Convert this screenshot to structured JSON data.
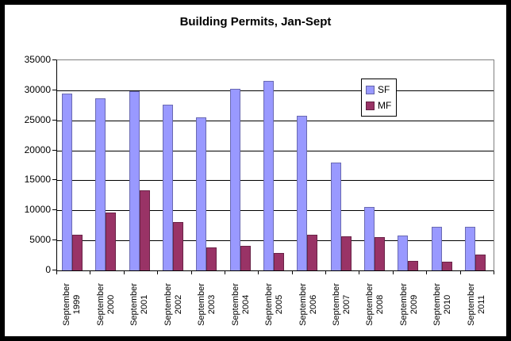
{
  "window": {
    "background": "#ffffff",
    "frame_border_color": "#000000"
  },
  "chart_data": {
    "type": "bar",
    "title": "Building Permits, Jan-Sept",
    "categories": [
      "September 1999",
      "September 2000",
      "September 2001",
      "September 2002",
      "September 2003",
      "September 2004",
      "September 2005",
      "September 2006",
      "September 2007",
      "September 2008",
      "September 2009",
      "September 2010",
      "September 2011"
    ],
    "series": [
      {
        "name": "SF",
        "color": "#9999ff",
        "values": [
          29500,
          28600,
          29900,
          27600,
          25500,
          30200,
          31600,
          25800,
          18000,
          10600,
          5800,
          7200,
          7200
        ]
      },
      {
        "name": "MF",
        "color": "#993366",
        "values": [
          6000,
          9600,
          13300,
          8100,
          3800,
          4100,
          2900,
          6000,
          5700,
          5600,
          1600,
          1400,
          2700
        ]
      }
    ],
    "xlabel": "",
    "ylabel": "",
    "ylim": [
      0,
      35000
    ],
    "y_ticks": [
      0,
      5000,
      10000,
      15000,
      20000,
      25000,
      30000,
      35000
    ],
    "grid": "horizontal-major",
    "gridline_color": "#000000",
    "plot_border_color": "#808080",
    "legend_position": "inside-top-right",
    "legend_labels": [
      "SF",
      "MF"
    ]
  }
}
